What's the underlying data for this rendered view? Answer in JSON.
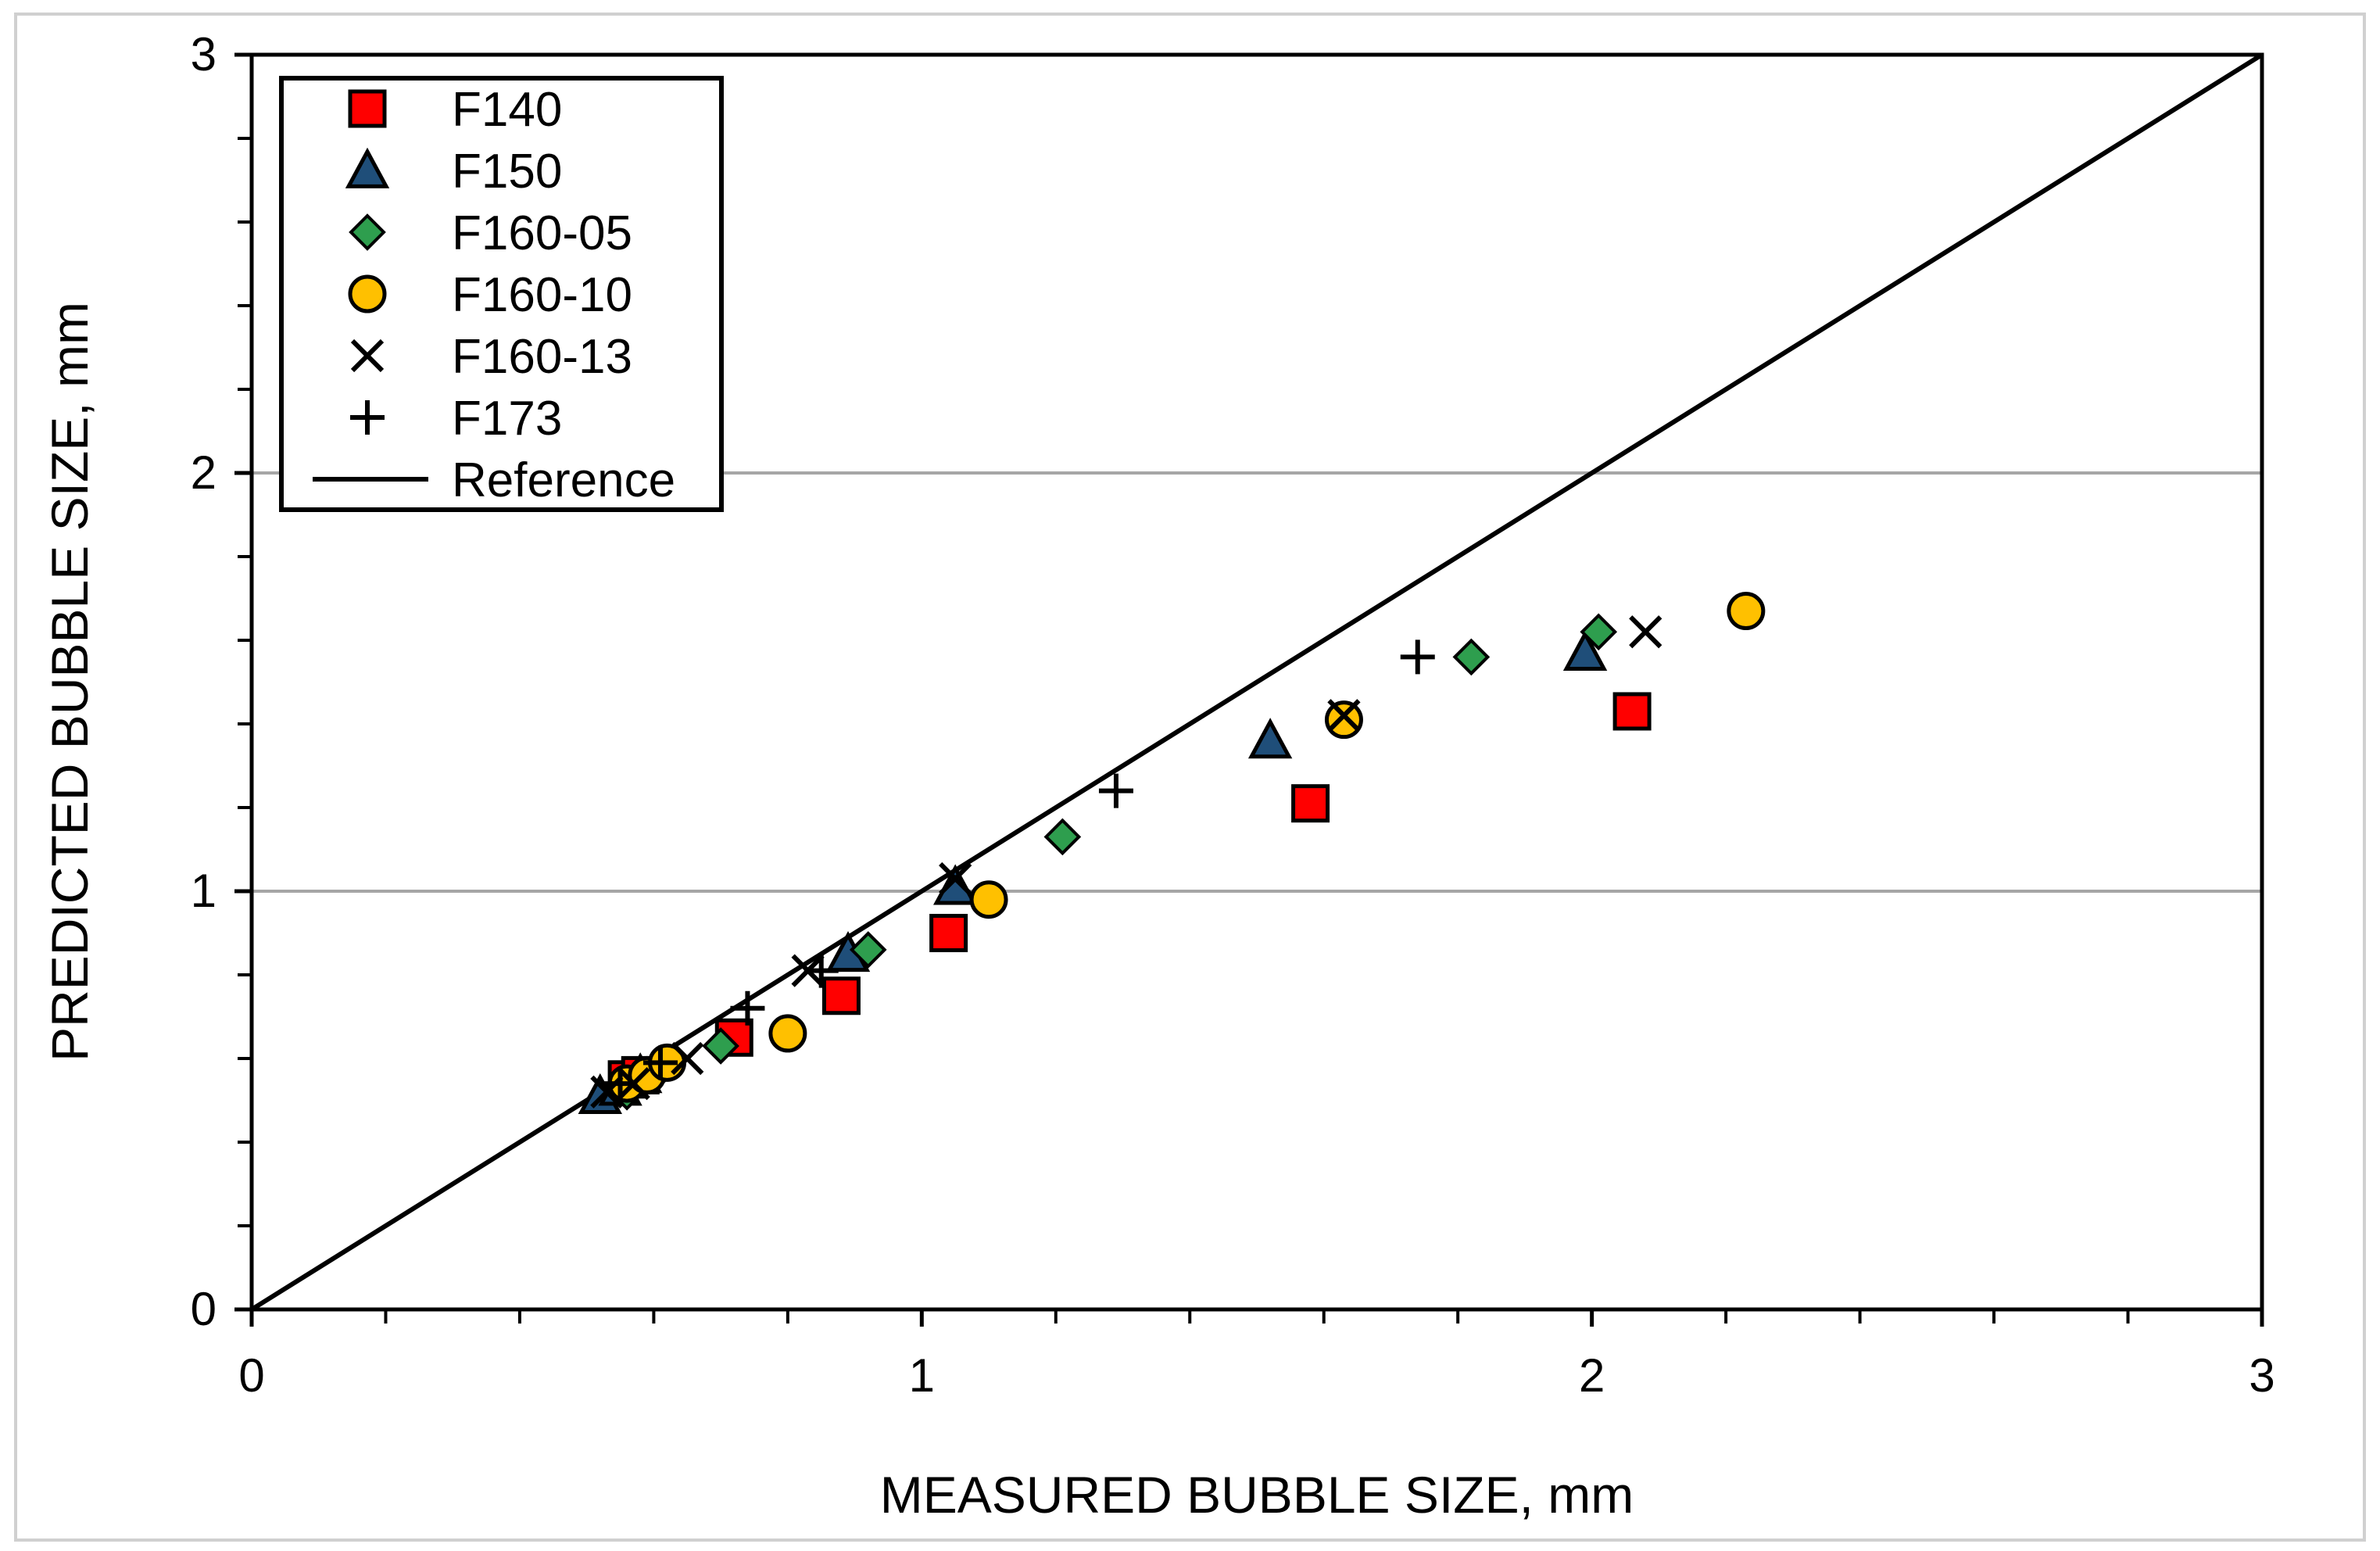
{
  "chart_data": {
    "type": "scatter",
    "title": "",
    "xlabel": "MEASURED BUBBLE SIZE, mm",
    "ylabel": "PREDICTED BUBBLE SIZE, mm",
    "xlim": [
      0,
      3
    ],
    "ylim": [
      0,
      3
    ],
    "xticks": [
      "0",
      "1",
      "2",
      "3"
    ],
    "yticks": [
      "0",
      "1",
      "2",
      "3"
    ],
    "grid": "horizontal major",
    "legend_position": "top-left",
    "series": [
      {
        "name": "F140",
        "marker": "square",
        "color": "#ff0000",
        "points": [
          [
            0.56,
            0.55
          ],
          [
            0.58,
            0.56
          ],
          [
            0.72,
            0.65
          ],
          [
            0.88,
            0.75
          ],
          [
            1.04,
            0.9
          ],
          [
            1.58,
            1.21
          ],
          [
            2.06,
            1.43
          ]
        ]
      },
      {
        "name": "F150",
        "marker": "triangle",
        "color": "#1f4e79",
        "points": [
          [
            0.52,
            0.51
          ],
          [
            0.55,
            0.53
          ],
          [
            0.58,
            0.56
          ],
          [
            0.89,
            0.85
          ],
          [
            1.05,
            1.01
          ],
          [
            1.52,
            1.36
          ],
          [
            1.99,
            1.57
          ]
        ]
      },
      {
        "name": "F160-05",
        "marker": "diamond",
        "color": "#2e9e4e",
        "points": [
          [
            0.56,
            0.52
          ],
          [
            0.6,
            0.56
          ],
          [
            0.7,
            0.63
          ],
          [
            0.92,
            0.86
          ],
          [
            1.21,
            1.13
          ],
          [
            1.82,
            1.56
          ],
          [
            2.01,
            1.62
          ]
        ]
      },
      {
        "name": "F160-10",
        "marker": "circle",
        "color": "#ffc000",
        "points": [
          [
            0.56,
            0.54
          ],
          [
            0.59,
            0.56
          ],
          [
            0.62,
            0.59
          ],
          [
            0.8,
            0.66
          ],
          [
            1.1,
            0.98
          ],
          [
            1.63,
            1.41
          ],
          [
            2.23,
            1.67
          ]
        ]
      },
      {
        "name": "F160-13",
        "marker": "x",
        "color": "#000000",
        "points": [
          [
            0.53,
            0.52
          ],
          [
            0.57,
            0.54
          ],
          [
            0.65,
            0.6
          ],
          [
            0.83,
            0.81
          ],
          [
            1.05,
            1.03
          ],
          [
            1.63,
            1.42
          ],
          [
            2.08,
            1.62
          ]
        ]
      },
      {
        "name": "F173",
        "marker": "plus",
        "color": "#000000",
        "points": [
          [
            0.55,
            0.54
          ],
          [
            0.61,
            0.59
          ],
          [
            0.74,
            0.72
          ],
          [
            0.85,
            0.81
          ],
          [
            1.29,
            1.24
          ],
          [
            1.74,
            1.56
          ]
        ]
      },
      {
        "name": "Reference",
        "marker": "line",
        "color": "#000000",
        "points": [
          [
            0,
            0
          ],
          [
            3,
            3
          ]
        ]
      }
    ]
  }
}
